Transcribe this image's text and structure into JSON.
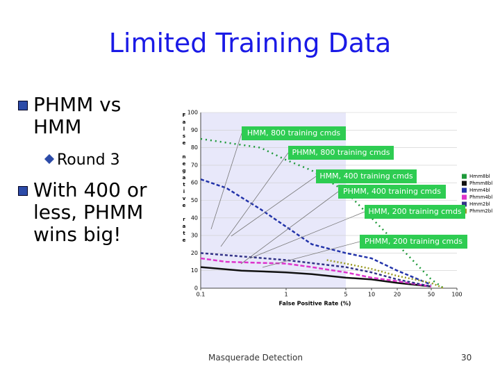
{
  "title": "Limited Training Data",
  "bullets": [
    {
      "text": "PHMM vs HMM",
      "sub": [
        "Round 3"
      ]
    },
    {
      "text": "With 400 or less, PHMM wins big!"
    }
  ],
  "footer": {
    "center": "Masquerade Detection",
    "page": "30"
  },
  "chart_data": {
    "type": "line",
    "xlabel": "False Positive Rate (%)",
    "ylabel": "False negative rate",
    "xscale": "log",
    "xlim": [
      0.1,
      100
    ],
    "xticks": [
      0.1,
      1,
      5,
      10,
      20,
      50,
      100
    ],
    "ylim": [
      0,
      100
    ],
    "yticks": [
      0,
      10,
      20,
      30,
      40,
      50,
      60,
      70,
      80,
      90,
      100
    ],
    "grid": true,
    "shaded_region": [
      0.1,
      5
    ],
    "annotations": [
      "HMM, 800 training cmds",
      "PHMM, 800 training cmds",
      "HMM, 400 training cmds",
      "PHMM, 400 training cmds",
      "HMM, 200 training cmds",
      "PHMM, 200 training cmds"
    ],
    "series": [
      {
        "name": "Hmm8bl",
        "color": "#1e9a3a",
        "dash": "2 5",
        "x": [
          0.1,
          0.5,
          1,
          2,
          5,
          10,
          20,
          50,
          70
        ],
        "values": [
          85,
          80,
          73,
          67,
          55,
          40,
          25,
          5,
          0
        ]
      },
      {
        "name": "Phmm8bl",
        "color": "#111111",
        "dash": "",
        "x": [
          0.1,
          0.3,
          1,
          2,
          5,
          10,
          20,
          50
        ],
        "values": [
          12,
          10,
          9,
          8,
          6,
          5,
          3,
          1
        ]
      },
      {
        "name": "Hmm4bl",
        "color": "#2233aa",
        "dash": "5 3",
        "x": [
          0.1,
          0.2,
          0.5,
          1,
          2,
          5,
          10,
          20,
          50
        ],
        "values": [
          62,
          57,
          45,
          35,
          25,
          20,
          17,
          10,
          2
        ]
      },
      {
        "name": "Phmm4bl",
        "color": "#dd33cc",
        "dash": "6 3",
        "x": [
          0.1,
          0.2,
          1,
          2,
          5,
          10,
          20,
          50
        ],
        "values": [
          17,
          15,
          14,
          12,
          9,
          6,
          4,
          1
        ]
      },
      {
        "name": "Hmm2bl",
        "color": "#333388",
        "dash": "4 3",
        "x": [
          0.1,
          1,
          5,
          10,
          20,
          50
        ],
        "values": [
          20,
          16,
          12,
          9,
          5,
          1
        ]
      },
      {
        "name": "Phmm2bl",
        "color": "#9a9a22",
        "dash": "2 3",
        "x": [
          3,
          5,
          10,
          20,
          50,
          70
        ],
        "values": [
          16,
          14,
          11,
          7,
          3,
          0
        ]
      }
    ]
  }
}
